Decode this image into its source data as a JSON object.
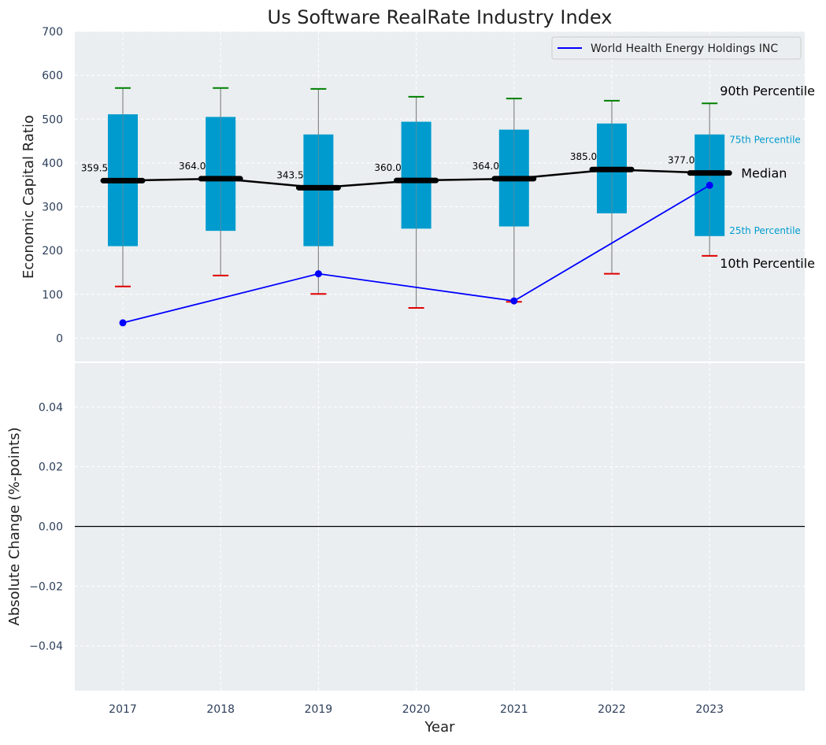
{
  "chart_data": [
    {
      "type": "boxplot",
      "title": "Us Software RealRate Industry Index",
      "xlabel": "",
      "ylabel": "Economic Capital Ratio",
      "x": [
        "2017",
        "2018",
        "2019",
        "2020",
        "2021",
        "2022",
        "2023"
      ],
      "ylim": [
        -55,
        700
      ],
      "yticks": [
        0,
        100,
        200,
        300,
        400,
        500,
        600,
        700
      ],
      "grid": true,
      "legend_position": "top-right",
      "boxes": [
        {
          "year": "2017",
          "p10": 118,
          "p25": 210,
          "median": 359.5,
          "p75": 511,
          "p90": 571
        },
        {
          "year": "2018",
          "p10": 143,
          "p25": 245,
          "median": 364.0,
          "p75": 505,
          "p90": 571
        },
        {
          "year": "2019",
          "p10": 101,
          "p25": 210,
          "median": 343.5,
          "p75": 465,
          "p90": 569
        },
        {
          "year": "2020",
          "p10": 69,
          "p25": 250,
          "median": 360.0,
          "p75": 494,
          "p90": 551
        },
        {
          "year": "2021",
          "p10": 83,
          "p25": 255,
          "median": 364.0,
          "p75": 476,
          "p90": 547
        },
        {
          "year": "2022",
          "p10": 147,
          "p25": 285,
          "median": 385.0,
          "p75": 490,
          "p90": 542
        },
        {
          "year": "2023",
          "p10": 188,
          "p25": 233,
          "median": 377.0,
          "p75": 465,
          "p90": 536
        }
      ],
      "median_labels": [
        "359.5",
        "364.0",
        "343.5",
        "360.0",
        "364.0",
        "385.0",
        "377.0"
      ],
      "series": [
        {
          "name": "World Health Energy Holdings INC",
          "points": [
            {
              "x": "2017",
              "y": 35
            },
            {
              "x": "2019",
              "y": 147
            },
            {
              "x": "2021",
              "y": 85
            },
            {
              "x": "2023",
              "y": 349
            }
          ]
        }
      ],
      "annotations": {
        "p90": "90th Percentile",
        "p75": "75th Percentile",
        "median": "Median",
        "p25": "25th Percentile",
        "p10": "10th Percentile"
      }
    },
    {
      "type": "line",
      "xlabel": "Year",
      "ylabel": "Absolute Change (%-points)",
      "x": [
        "2017",
        "2018",
        "2019",
        "2020",
        "2021",
        "2022",
        "2023"
      ],
      "ylim": [
        -0.055,
        0.055
      ],
      "yticks": [
        -0.04,
        -0.02,
        0.0,
        0.02,
        0.04
      ],
      "ytick_labels": [
        "−0.04",
        "−0.02",
        "0.00",
        "0.02",
        "0.04"
      ],
      "grid": true,
      "reference_line": 0,
      "series": []
    }
  ],
  "colors": {
    "plot_bg": "#eaeef0",
    "box": "#009bce",
    "whisker": "#888888",
    "p90_cap": "#008000",
    "p10_cap": "#e00000",
    "median": "#000000",
    "company_line": "#0000ff",
    "tick_text": "#2c3e5a",
    "annotation_box_label": "#009bce"
  }
}
